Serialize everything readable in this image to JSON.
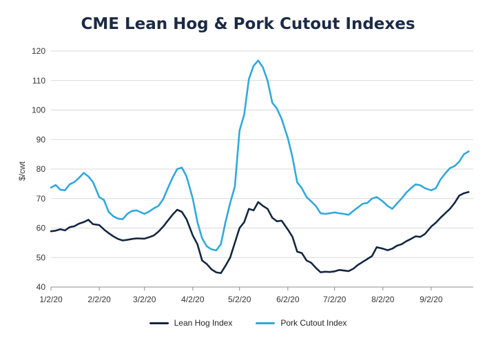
{
  "chart_data": {
    "type": "line",
    "title": "CME Lean Hog & Pork Cutout Indexes",
    "xlabel": "",
    "ylabel": "$/cwt",
    "ylim": [
      40,
      120
    ],
    "yticks": [
      40,
      50,
      60,
      70,
      80,
      90,
      100,
      110,
      120
    ],
    "xlim": [
      "2020-01-02",
      "2020-09-29"
    ],
    "xticks": [
      {
        "date": "2020-01-02",
        "label": "1/2/20"
      },
      {
        "date": "2020-02-02",
        "label": "2/2/20"
      },
      {
        "date": "2020-03-02",
        "label": "3/2/20"
      },
      {
        "date": "2020-04-02",
        "label": "4/2/20"
      },
      {
        "date": "2020-05-02",
        "label": "5/2/20"
      },
      {
        "date": "2020-06-02",
        "label": "6/2/20"
      },
      {
        "date": "2020-07-02",
        "label": "7/2/20"
      },
      {
        "date": "2020-08-02",
        "label": "8/2/20"
      },
      {
        "date": "2020-09-02",
        "label": "9/2/20"
      }
    ],
    "grid": "horizontal",
    "legend_position": "bottom",
    "series": [
      {
        "name": "Lean Hog Index",
        "color": "#142642",
        "points": [
          [
            "2020-01-02",
            58.9
          ],
          [
            "2020-01-05",
            59.1
          ],
          [
            "2020-01-08",
            59.6
          ],
          [
            "2020-01-11",
            59.2
          ],
          [
            "2020-01-14",
            60.3
          ],
          [
            "2020-01-17",
            60.6
          ],
          [
            "2020-01-20",
            61.5
          ],
          [
            "2020-01-23",
            62.0
          ],
          [
            "2020-01-26",
            62.8
          ],
          [
            "2020-01-29",
            61.3
          ],
          [
            "2020-02-02",
            61.0
          ],
          [
            "2020-02-05",
            59.5
          ],
          [
            "2020-02-08",
            58.3
          ],
          [
            "2020-02-11",
            57.2
          ],
          [
            "2020-02-14",
            56.3
          ],
          [
            "2020-02-17",
            55.8
          ],
          [
            "2020-02-20",
            56.0
          ],
          [
            "2020-02-23",
            56.3
          ],
          [
            "2020-02-26",
            56.5
          ],
          [
            "2020-03-02",
            56.4
          ],
          [
            "2020-03-05",
            56.9
          ],
          [
            "2020-03-08",
            57.5
          ],
          [
            "2020-03-11",
            58.8
          ],
          [
            "2020-03-14",
            60.5
          ],
          [
            "2020-03-17",
            62.5
          ],
          [
            "2020-03-20",
            64.5
          ],
          [
            "2020-03-23",
            66.2
          ],
          [
            "2020-03-26",
            65.5
          ],
          [
            "2020-03-29",
            63.0
          ],
          [
            "2020-04-02",
            57.5
          ],
          [
            "2020-04-05",
            54.5
          ],
          [
            "2020-04-08",
            49.0
          ],
          [
            "2020-04-11",
            47.8
          ],
          [
            "2020-04-14",
            46.0
          ],
          [
            "2020-04-17",
            45.0
          ],
          [
            "2020-04-20",
            44.7
          ],
          [
            "2020-04-23",
            47.2
          ],
          [
            "2020-04-26",
            50.0
          ],
          [
            "2020-04-29",
            55.0
          ],
          [
            "2020-05-02",
            60.0
          ],
          [
            "2020-05-05",
            62.0
          ],
          [
            "2020-05-08",
            66.5
          ],
          [
            "2020-05-11",
            66.0
          ],
          [
            "2020-05-14",
            68.8
          ],
          [
            "2020-05-17",
            67.5
          ],
          [
            "2020-05-20",
            66.5
          ],
          [
            "2020-05-23",
            63.5
          ],
          [
            "2020-05-26",
            62.3
          ],
          [
            "2020-05-29",
            62.5
          ],
          [
            "2020-06-02",
            59.5
          ],
          [
            "2020-06-05",
            57.0
          ],
          [
            "2020-06-08",
            52.0
          ],
          [
            "2020-06-11",
            51.5
          ],
          [
            "2020-06-14",
            49.0
          ],
          [
            "2020-06-17",
            48.2
          ],
          [
            "2020-06-20",
            46.5
          ],
          [
            "2020-06-23",
            45.0
          ],
          [
            "2020-06-26",
            45.2
          ],
          [
            "2020-06-29",
            45.1
          ],
          [
            "2020-07-02",
            45.3
          ],
          [
            "2020-07-05",
            45.8
          ],
          [
            "2020-07-08",
            45.6
          ],
          [
            "2020-07-11",
            45.4
          ],
          [
            "2020-07-14",
            46.2
          ],
          [
            "2020-07-17",
            47.5
          ],
          [
            "2020-07-20",
            48.5
          ],
          [
            "2020-07-23",
            49.5
          ],
          [
            "2020-07-26",
            50.5
          ],
          [
            "2020-07-29",
            53.5
          ],
          [
            "2020-08-02",
            53.0
          ],
          [
            "2020-08-05",
            52.5
          ],
          [
            "2020-08-08",
            53.0
          ],
          [
            "2020-08-11",
            54.0
          ],
          [
            "2020-08-14",
            54.5
          ],
          [
            "2020-08-17",
            55.5
          ],
          [
            "2020-08-20",
            56.3
          ],
          [
            "2020-08-23",
            57.2
          ],
          [
            "2020-08-26",
            57.0
          ],
          [
            "2020-08-29",
            58.0
          ],
          [
            "2020-09-02",
            60.5
          ],
          [
            "2020-09-05",
            61.8
          ],
          [
            "2020-09-08",
            63.5
          ],
          [
            "2020-09-11",
            65.0
          ],
          [
            "2020-09-14",
            66.5
          ],
          [
            "2020-09-17",
            68.5
          ],
          [
            "2020-09-20",
            71.0
          ],
          [
            "2020-09-23",
            71.8
          ],
          [
            "2020-09-26",
            72.2
          ]
        ]
      },
      {
        "name": "Pork Cutout Index",
        "color": "#30a8dc",
        "points": [
          [
            "2020-01-02",
            73.7
          ],
          [
            "2020-01-05",
            74.6
          ],
          [
            "2020-01-08",
            73.0
          ],
          [
            "2020-01-11",
            72.8
          ],
          [
            "2020-01-14",
            74.8
          ],
          [
            "2020-01-17",
            75.6
          ],
          [
            "2020-01-20",
            77.0
          ],
          [
            "2020-01-23",
            78.7
          ],
          [
            "2020-01-26",
            77.5
          ],
          [
            "2020-01-29",
            75.5
          ],
          [
            "2020-02-02",
            70.5
          ],
          [
            "2020-02-05",
            69.5
          ],
          [
            "2020-02-08",
            65.5
          ],
          [
            "2020-02-11",
            64.0
          ],
          [
            "2020-02-14",
            63.2
          ],
          [
            "2020-02-17",
            63.0
          ],
          [
            "2020-02-20",
            64.8
          ],
          [
            "2020-02-23",
            65.8
          ],
          [
            "2020-02-26",
            66.0
          ],
          [
            "2020-03-02",
            64.8
          ],
          [
            "2020-03-05",
            65.6
          ],
          [
            "2020-03-08",
            66.7
          ],
          [
            "2020-03-11",
            67.5
          ],
          [
            "2020-03-14",
            69.8
          ],
          [
            "2020-03-17",
            73.5
          ],
          [
            "2020-03-20",
            77.0
          ],
          [
            "2020-03-23",
            80.0
          ],
          [
            "2020-03-26",
            80.5
          ],
          [
            "2020-03-29",
            77.5
          ],
          [
            "2020-04-02",
            70.0
          ],
          [
            "2020-04-05",
            62.0
          ],
          [
            "2020-04-08",
            56.5
          ],
          [
            "2020-04-11",
            53.8
          ],
          [
            "2020-04-14",
            52.8
          ],
          [
            "2020-04-17",
            52.4
          ],
          [
            "2020-04-20",
            54.5
          ],
          [
            "2020-04-23",
            62.0
          ],
          [
            "2020-04-26",
            68.5
          ],
          [
            "2020-04-29",
            74.0
          ],
          [
            "2020-05-02",
            93.0
          ],
          [
            "2020-05-05",
            98.5
          ],
          [
            "2020-05-08",
            110.5
          ],
          [
            "2020-05-11",
            115.0
          ],
          [
            "2020-05-14",
            116.8
          ],
          [
            "2020-05-17",
            114.5
          ],
          [
            "2020-05-20",
            110.0
          ],
          [
            "2020-05-23",
            102.5
          ],
          [
            "2020-05-26",
            100.5
          ],
          [
            "2020-05-29",
            97.0
          ],
          [
            "2020-06-02",
            90.5
          ],
          [
            "2020-06-05",
            84.0
          ],
          [
            "2020-06-08",
            75.5
          ],
          [
            "2020-06-11",
            73.5
          ],
          [
            "2020-06-14",
            70.5
          ],
          [
            "2020-06-17",
            69.0
          ],
          [
            "2020-06-20",
            67.5
          ],
          [
            "2020-06-23",
            65.0
          ],
          [
            "2020-06-26",
            64.8
          ],
          [
            "2020-06-29",
            65.0
          ],
          [
            "2020-07-02",
            65.3
          ],
          [
            "2020-07-05",
            65.0
          ],
          [
            "2020-07-08",
            64.8
          ],
          [
            "2020-07-11",
            64.5
          ],
          [
            "2020-07-14",
            65.8
          ],
          [
            "2020-07-17",
            67.0
          ],
          [
            "2020-07-20",
            68.2
          ],
          [
            "2020-07-23",
            68.5
          ],
          [
            "2020-07-26",
            70.0
          ],
          [
            "2020-07-29",
            70.5
          ],
          [
            "2020-08-02",
            69.0
          ],
          [
            "2020-08-05",
            67.5
          ],
          [
            "2020-08-08",
            66.5
          ],
          [
            "2020-08-11",
            68.3
          ],
          [
            "2020-08-14",
            70.0
          ],
          [
            "2020-08-17",
            72.0
          ],
          [
            "2020-08-20",
            73.5
          ],
          [
            "2020-08-23",
            74.8
          ],
          [
            "2020-08-26",
            74.5
          ],
          [
            "2020-08-29",
            73.5
          ],
          [
            "2020-09-02",
            72.8
          ],
          [
            "2020-09-05",
            73.5
          ],
          [
            "2020-09-08",
            76.5
          ],
          [
            "2020-09-11",
            78.5
          ],
          [
            "2020-09-14",
            80.3
          ],
          [
            "2020-09-17",
            81.0
          ],
          [
            "2020-09-20",
            82.5
          ],
          [
            "2020-09-23",
            85.0
          ],
          [
            "2020-09-26",
            86.0
          ]
        ]
      }
    ]
  }
}
